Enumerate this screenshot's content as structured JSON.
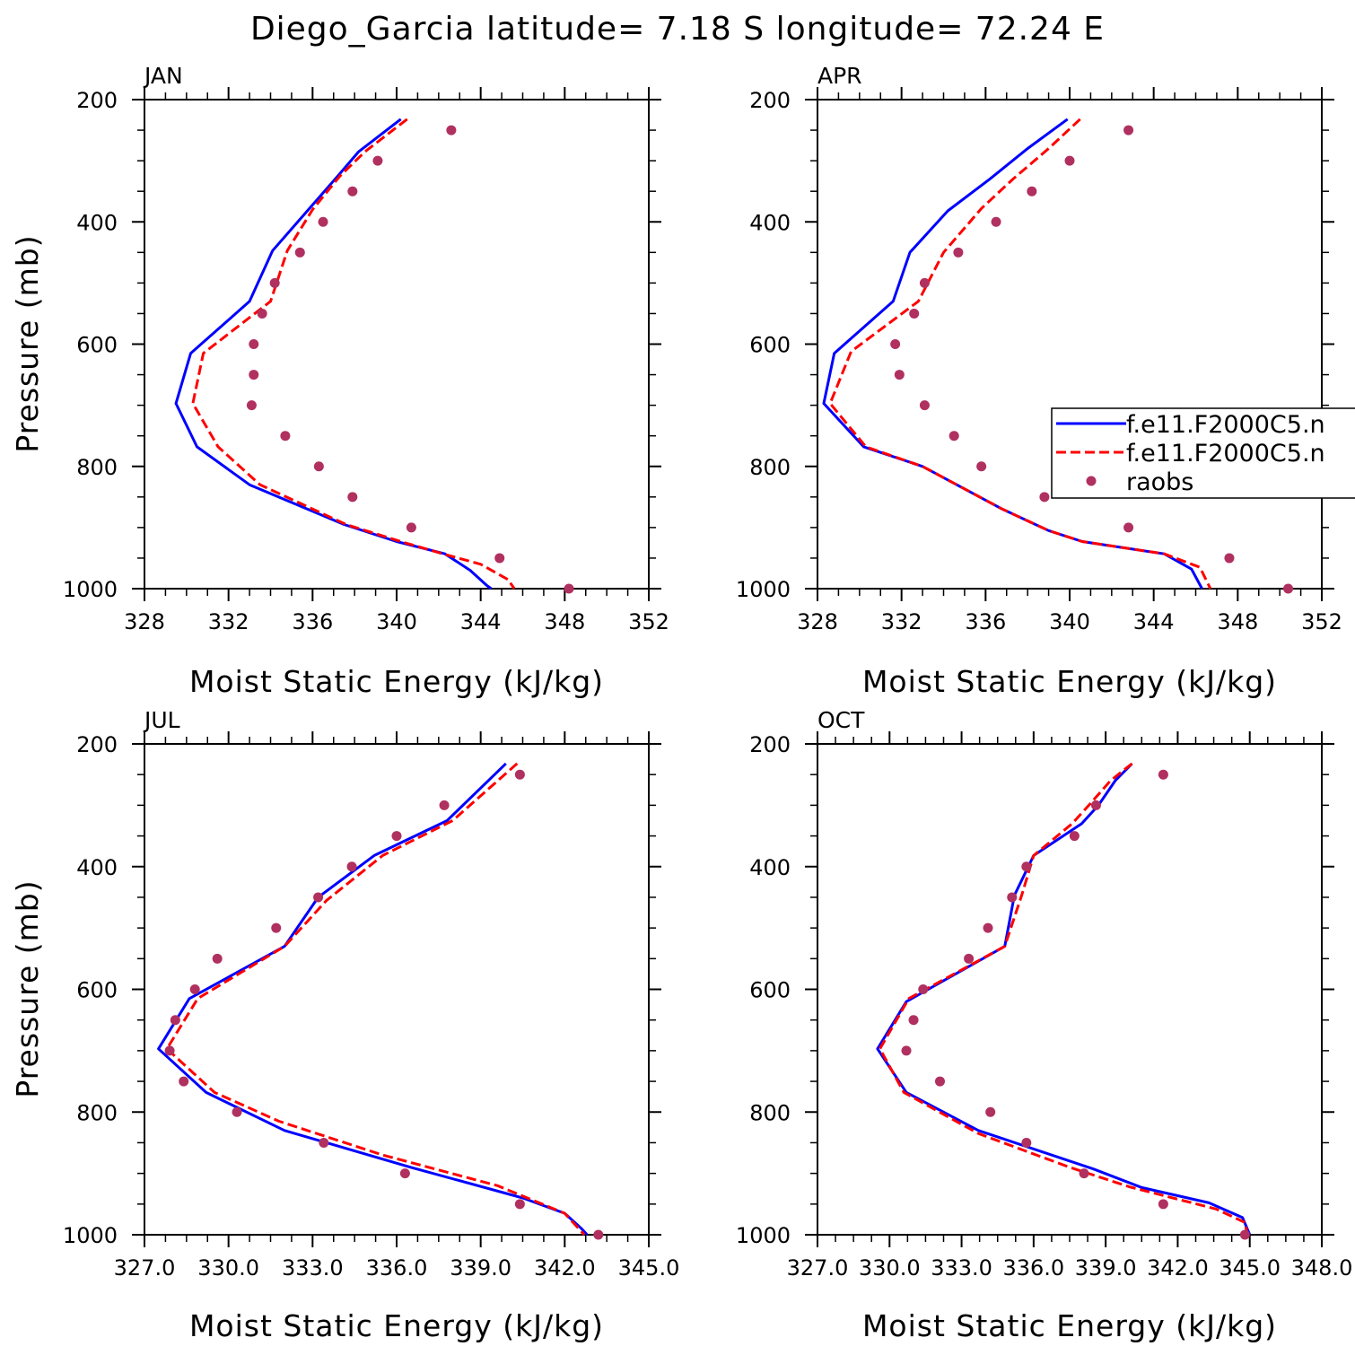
{
  "figure": {
    "title": "Diego_Garcia  latitude= 7.18 S longitude= 72.24 E",
    "colors": {
      "model1": "#0000ff",
      "model2": "#ff0000",
      "obs": "#b03060"
    }
  },
  "legend": {
    "entries": [
      "f.e11.F2000C5.n",
      "f.e11.F2000C5.n",
      "raobs"
    ]
  },
  "chart_data": [
    {
      "type": "line",
      "panel": "JAN",
      "xlabel": "Moist Static Energy (kJ/kg)",
      "ylabel": "Pressure (mb)",
      "xlim": [
        328,
        352
      ],
      "ylim": [
        1000,
        200
      ],
      "y_inverted": true,
      "xticks": [
        328,
        332,
        336,
        340,
        344,
        348,
        352
      ],
      "xtick_labels": [
        "328",
        "332",
        "336",
        "340",
        "344",
        "348",
        "352"
      ],
      "yticks": [
        200,
        400,
        600,
        800,
        1000
      ],
      "ytick_labels": [
        "200",
        "400",
        "600",
        "800",
        "1000"
      ],
      "series": [
        {
          "name": "f.e11.F2000C5.n",
          "style": "solid",
          "points": [
            [
              340.2,
              232
            ],
            [
              338.2,
              285
            ],
            [
              337.2,
              325
            ],
            [
              335.8,
              380
            ],
            [
              334.1,
              447
            ],
            [
              333.0,
              530
            ],
            [
              330.2,
              615
            ],
            [
              329.5,
              697
            ],
            [
              330.5,
              768
            ],
            [
              333.0,
              830
            ],
            [
              337.5,
              895
            ],
            [
              340.0,
              923
            ],
            [
              342.3,
              943
            ],
            [
              343.5,
              970
            ],
            [
              344.3,
              995
            ],
            [
              344.5,
              1000
            ]
          ]
        },
        {
          "name": "f.e11.F2000C5.n",
          "style": "dashed",
          "points": [
            [
              340.5,
              232
            ],
            [
              338.5,
              285
            ],
            [
              337.3,
              325
            ],
            [
              336.0,
              380
            ],
            [
              334.8,
              447
            ],
            [
              334.0,
              530
            ],
            [
              330.8,
              615
            ],
            [
              330.3,
              697
            ],
            [
              331.5,
              768
            ],
            [
              333.5,
              830
            ],
            [
              337.6,
              895
            ],
            [
              340.2,
              923
            ],
            [
              342.2,
              943
            ],
            [
              344.0,
              960
            ],
            [
              345.3,
              985
            ],
            [
              345.6,
              1000
            ]
          ]
        },
        {
          "name": "raobs",
          "style": "marker",
          "points": [
            [
              342.6,
              250
            ],
            [
              339.1,
              300
            ],
            [
              337.9,
              350
            ],
            [
              336.5,
              400
            ],
            [
              335.4,
              450
            ],
            [
              334.2,
              500
            ],
            [
              333.6,
              550
            ],
            [
              333.2,
              600
            ],
            [
              333.2,
              650
            ],
            [
              333.1,
              700
            ],
            [
              334.7,
              750
            ],
            [
              336.3,
              800
            ],
            [
              337.9,
              850
            ],
            [
              340.7,
              900
            ],
            [
              344.9,
              950
            ],
            [
              348.2,
              1000
            ]
          ]
        }
      ]
    },
    {
      "type": "line",
      "panel": "APR",
      "xlabel": "Moist Static Energy (kJ/kg)",
      "ylabel": "",
      "xlim": [
        328,
        352
      ],
      "ylim": [
        1000,
        200
      ],
      "y_inverted": true,
      "xticks": [
        328,
        332,
        336,
        340,
        344,
        348,
        352
      ],
      "xtick_labels": [
        "328",
        "332",
        "336",
        "340",
        "344",
        "348",
        "352"
      ],
      "yticks": [
        200,
        400,
        600,
        800,
        1000
      ],
      "ytick_labels": [
        "200",
        "400",
        "600",
        "800",
        "1000"
      ],
      "series": [
        {
          "name": "f.e11.F2000C5.n",
          "style": "solid",
          "points": [
            [
              339.9,
              232
            ],
            [
              338.0,
              280
            ],
            [
              336.2,
              330
            ],
            [
              334.2,
              382
            ],
            [
              332.4,
              450
            ],
            [
              331.6,
              530
            ],
            [
              328.8,
              615
            ],
            [
              328.3,
              697
            ],
            [
              330.2,
              768
            ],
            [
              333.0,
              800
            ],
            [
              336.8,
              870
            ],
            [
              339.0,
              905
            ],
            [
              340.6,
              923
            ],
            [
              344.5,
              943
            ],
            [
              345.8,
              968
            ],
            [
              346.3,
              1000
            ]
          ]
        },
        {
          "name": "f.e11.F2000C5.n",
          "style": "dashed",
          "points": [
            [
              340.5,
              232
            ],
            [
              339.0,
              280
            ],
            [
              337.3,
              330
            ],
            [
              335.8,
              378
            ],
            [
              334.0,
              450
            ],
            [
              332.8,
              530
            ],
            [
              329.6,
              612
            ],
            [
              328.6,
              697
            ],
            [
              330.3,
              768
            ],
            [
              333.0,
              800
            ],
            [
              336.8,
              870
            ],
            [
              339.0,
              905
            ],
            [
              340.6,
              923
            ],
            [
              344.5,
              943
            ],
            [
              346.2,
              965
            ],
            [
              346.7,
              1000
            ]
          ]
        },
        {
          "name": "raobs",
          "style": "marker",
          "points": [
            [
              342.8,
              250
            ],
            [
              340.0,
              300
            ],
            [
              338.2,
              350
            ],
            [
              336.5,
              400
            ],
            [
              334.7,
              450
            ],
            [
              333.1,
              500
            ],
            [
              332.6,
              550
            ],
            [
              331.7,
              600
            ],
            [
              331.9,
              650
            ],
            [
              333.1,
              700
            ],
            [
              334.5,
              750
            ],
            [
              335.8,
              800
            ],
            [
              338.8,
              850
            ],
            [
              342.8,
              900
            ],
            [
              347.6,
              950
            ],
            [
              350.4,
              1000
            ]
          ]
        }
      ]
    },
    {
      "type": "line",
      "panel": "JUL",
      "xlabel": "Moist Static Energy (kJ/kg)",
      "ylabel": "Pressure (mb)",
      "xlim": [
        327,
        345
      ],
      "ylim": [
        1000,
        200
      ],
      "y_inverted": true,
      "xticks": [
        327,
        330,
        333,
        336,
        339,
        342,
        345
      ],
      "xtick_labels": [
        "327.0",
        "330.0",
        "333.0",
        "336.0",
        "339.0",
        "342.0",
        "345.0"
      ],
      "yticks": [
        200,
        400,
        600,
        800,
        1000
      ],
      "ytick_labels": [
        "200",
        "400",
        "600",
        "800",
        "1000"
      ],
      "series": [
        {
          "name": "f.e11.F2000C5.n",
          "style": "solid",
          "points": [
            [
              339.9,
              232
            ],
            [
              337.8,
              325
            ],
            [
              335.2,
              382
            ],
            [
              333.2,
              450
            ],
            [
              332.0,
              530
            ],
            [
              328.6,
              615
            ],
            [
              327.5,
              697
            ],
            [
              329.2,
              768
            ],
            [
              332.0,
              830
            ],
            [
              336.5,
              890
            ],
            [
              340.5,
              940
            ],
            [
              342.0,
              965
            ],
            [
              342.6,
              990
            ],
            [
              342.8,
              1000
            ]
          ]
        },
        {
          "name": "f.e11.F2000C5.n",
          "style": "dashed",
          "points": [
            [
              340.3,
              232
            ],
            [
              338.0,
              325
            ],
            [
              335.5,
              382
            ],
            [
              333.5,
              455
            ],
            [
              332.0,
              530
            ],
            [
              328.9,
              615
            ],
            [
              327.8,
              697
            ],
            [
              329.5,
              768
            ],
            [
              331.8,
              815
            ],
            [
              335.5,
              870
            ],
            [
              339.6,
              920
            ],
            [
              342.0,
              965
            ],
            [
              342.7,
              1000
            ]
          ]
        },
        {
          "name": "raobs",
          "style": "marker",
          "points": [
            [
              340.4,
              250
            ],
            [
              337.7,
              300
            ],
            [
              336.0,
              350
            ],
            [
              334.4,
              400
            ],
            [
              333.2,
              450
            ],
            [
              331.7,
              500
            ],
            [
              329.6,
              550
            ],
            [
              328.8,
              600
            ],
            [
              328.1,
              650
            ],
            [
              327.9,
              700
            ],
            [
              328.4,
              750
            ],
            [
              330.3,
              800
            ],
            [
              333.4,
              850
            ],
            [
              336.3,
              900
            ],
            [
              340.4,
              950
            ],
            [
              343.2,
              1000
            ]
          ]
        }
      ]
    },
    {
      "type": "line",
      "panel": "OCT",
      "xlabel": "Moist Static Energy (kJ/kg)",
      "ylabel": "",
      "xlim": [
        327,
        348
      ],
      "ylim": [
        1000,
        200
      ],
      "y_inverted": true,
      "xticks": [
        327,
        330,
        333,
        336,
        339,
        342,
        345,
        348
      ],
      "xtick_labels": [
        "327.0",
        "330.0",
        "333.0",
        "336.0",
        "339.0",
        "342.0",
        "345.0",
        "348.0"
      ],
      "yticks": [
        200,
        400,
        600,
        800,
        1000
      ],
      "ytick_labels": [
        "200",
        "400",
        "600",
        "800",
        "1000"
      ],
      "series": [
        {
          "name": "f.e11.F2000C5.n",
          "style": "solid",
          "points": [
            [
              340.1,
              232
            ],
            [
              339.4,
              260
            ],
            [
              338.7,
              300
            ],
            [
              338.0,
              330
            ],
            [
              336.0,
              382
            ],
            [
              335.2,
              447
            ],
            [
              334.8,
              530
            ],
            [
              330.7,
              620
            ],
            [
              329.5,
              697
            ],
            [
              330.7,
              768
            ],
            [
              333.7,
              830
            ],
            [
              338.5,
              893
            ],
            [
              340.5,
              923
            ],
            [
              343.3,
              948
            ],
            [
              344.7,
              972
            ],
            [
              345.0,
              1000
            ]
          ]
        },
        {
          "name": "f.e11.F2000C5.n",
          "style": "dashed",
          "points": [
            [
              340.1,
              232
            ],
            [
              339.2,
              260
            ],
            [
              338.3,
              300
            ],
            [
              337.6,
              330
            ],
            [
              336.0,
              382
            ],
            [
              335.5,
              447
            ],
            [
              334.8,
              530
            ],
            [
              330.8,
              615
            ],
            [
              329.6,
              697
            ],
            [
              330.6,
              768
            ],
            [
              333.7,
              835
            ],
            [
              337.5,
              890
            ],
            [
              340.0,
              922
            ],
            [
              343.6,
              958
            ],
            [
              344.8,
              980
            ],
            [
              344.9,
              1000
            ]
          ]
        },
        {
          "name": "raobs",
          "style": "marker",
          "points": [
            [
              341.4,
              250
            ],
            [
              338.6,
              300
            ],
            [
              337.7,
              350
            ],
            [
              335.7,
              400
            ],
            [
              335.1,
              450
            ],
            [
              334.1,
              500
            ],
            [
              333.3,
              550
            ],
            [
              331.4,
              600
            ],
            [
              331.0,
              650
            ],
            [
              330.7,
              700
            ],
            [
              332.1,
              750
            ],
            [
              334.2,
              800
            ],
            [
              335.7,
              850
            ],
            [
              338.1,
              900
            ],
            [
              341.4,
              950
            ],
            [
              344.8,
              1000
            ]
          ]
        }
      ]
    }
  ]
}
